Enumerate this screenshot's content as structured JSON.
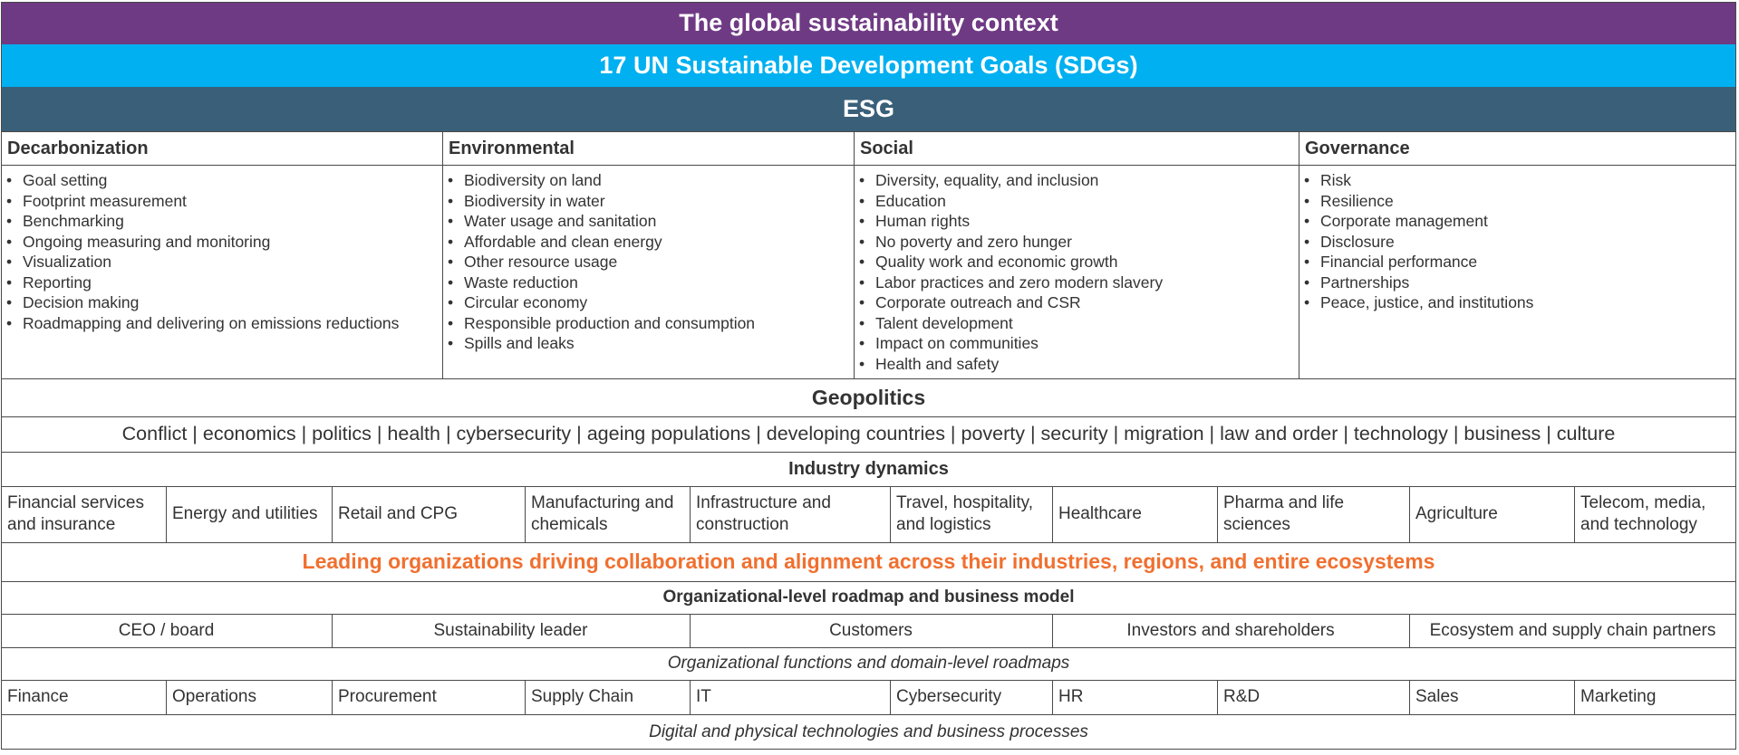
{
  "header": {
    "title": "The global sustainability context",
    "title_bg": "#6f3a84",
    "sdg": "17 UN Sustainable Development Goals (SDGs)",
    "sdg_bg": "#00b0f0",
    "esg": "ESG",
    "esg_bg": "#3a6079"
  },
  "esg_columns": [
    {
      "title": "Decarbonization",
      "items": [
        "Goal setting",
        "Footprint measurement",
        "Benchmarking",
        "Ongoing measuring and monitoring",
        "Visualization",
        "Reporting",
        "Decision making",
        "Roadmapping and delivering on emissions reductions"
      ]
    },
    {
      "title": "Environmental",
      "items": [
        "Biodiversity on land",
        "Biodiversity in water",
        "Water usage and sanitation",
        "Affordable and clean energy",
        "Other resource usage",
        "Waste reduction",
        "Circular economy",
        "Responsible production and consumption",
        "Spills and leaks"
      ]
    },
    {
      "title": "Social",
      "items": [
        "Diversity, equality, and inclusion",
        "Education",
        "Human rights",
        "No poverty and zero hunger",
        "Quality work and economic growth",
        "Labor practices and zero modern slavery",
        "Corporate outreach and CSR",
        "Talent development",
        "Impact on communities",
        "Health and safety"
      ]
    },
    {
      "title": "Governance",
      "items": [
        "Risk",
        "Resilience",
        "Corporate management",
        "Disclosure",
        "Financial performance",
        "Partnerships",
        "Peace, justice, and institutions"
      ]
    }
  ],
  "geopolitics": {
    "title": "Geopolitics",
    "items": "Conflict | economics | politics | health | cybersecurity | ageing populations | developing countries | poverty | security | migration | law and order | technology | business | culture"
  },
  "industry": {
    "title": "Industry dynamics",
    "cells": [
      "Financial services and insurance",
      "Energy and utilities",
      "Retail and CPG",
      "Manufacturing and chemicals",
      "Infrastructure and construction",
      "Travel, hospitality, and logistics",
      "Healthcare",
      "Pharma and life sciences",
      "Agriculture",
      "Telecom, media, and technology"
    ]
  },
  "leading": {
    "text": "Leading organizations driving collaboration and alignment across their industries, regions, and entire ecosystems",
    "color": "#f07030"
  },
  "org": {
    "title": "Organizational-level roadmap and business model",
    "cells": [
      "CEO / board",
      "Sustainability leader",
      "Customers",
      "Investors and shareholders",
      "Ecosystem and supply chain partners"
    ]
  },
  "functions": {
    "title": "Organizational functions and domain-level roadmaps",
    "cells": [
      "Finance",
      "Operations",
      "Procurement",
      "Supply Chain",
      "IT",
      "Cybersecurity",
      "HR",
      "R&D",
      "Sales",
      "Marketing"
    ]
  },
  "footer": {
    "text": "Digital and physical technologies and business processes"
  }
}
